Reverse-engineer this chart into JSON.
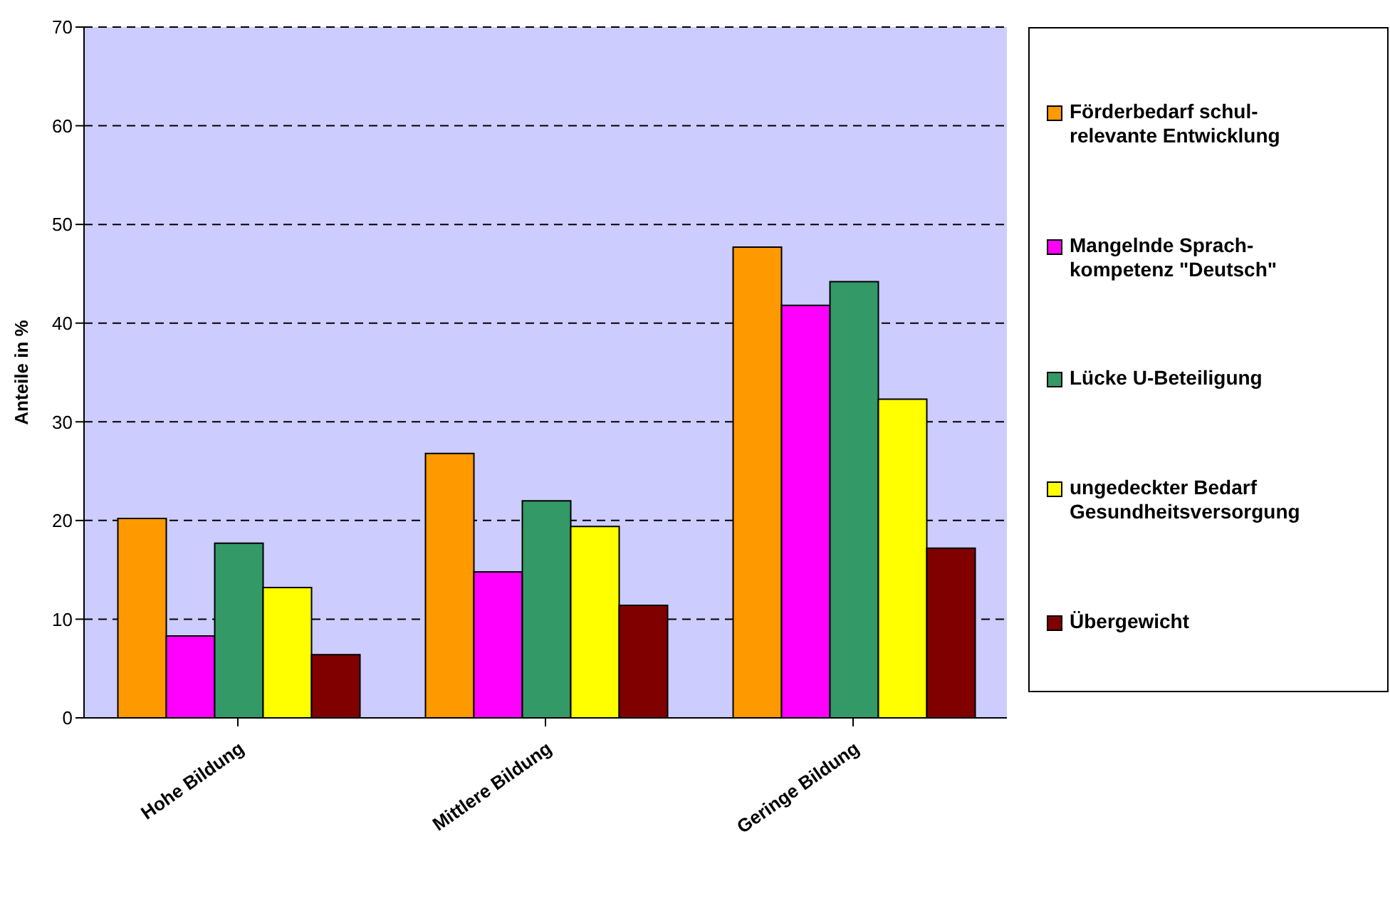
{
  "chart_data": {
    "type": "bar",
    "ylabel": "Anteile in %",
    "categories": [
      "Hohe Bildung",
      "Mittlere Bildung",
      "Geringe Bildung"
    ],
    "series": [
      {
        "name": "Förderbedarf schul-\nrelevante Entwicklung",
        "color": "#ff9900",
        "values": [
          20.2,
          26.8,
          47.7
        ]
      },
      {
        "name": "Mangelnde Sprach-\nkompetenz \"Deutsch\"",
        "color": "#ff00ff",
        "values": [
          8.3,
          14.8,
          41.8
        ]
      },
      {
        "name": "Lücke U-Beteiligung",
        "color": "#339966",
        "values": [
          17.7,
          22.0,
          44.2
        ]
      },
      {
        "name": "ungedeckter Bedarf\nGesundheitsversorgung",
        "color": "#ffff00",
        "values": [
          13.2,
          19.4,
          32.3
        ]
      },
      {
        "name": "Übergewicht",
        "color": "#800000",
        "values": [
          6.4,
          11.4,
          17.2
        ]
      }
    ],
    "ylim": [
      0,
      70
    ],
    "yticks": [
      0,
      10,
      20,
      30,
      40,
      50,
      60,
      70
    ],
    "grid": "y",
    "legend": "right"
  }
}
